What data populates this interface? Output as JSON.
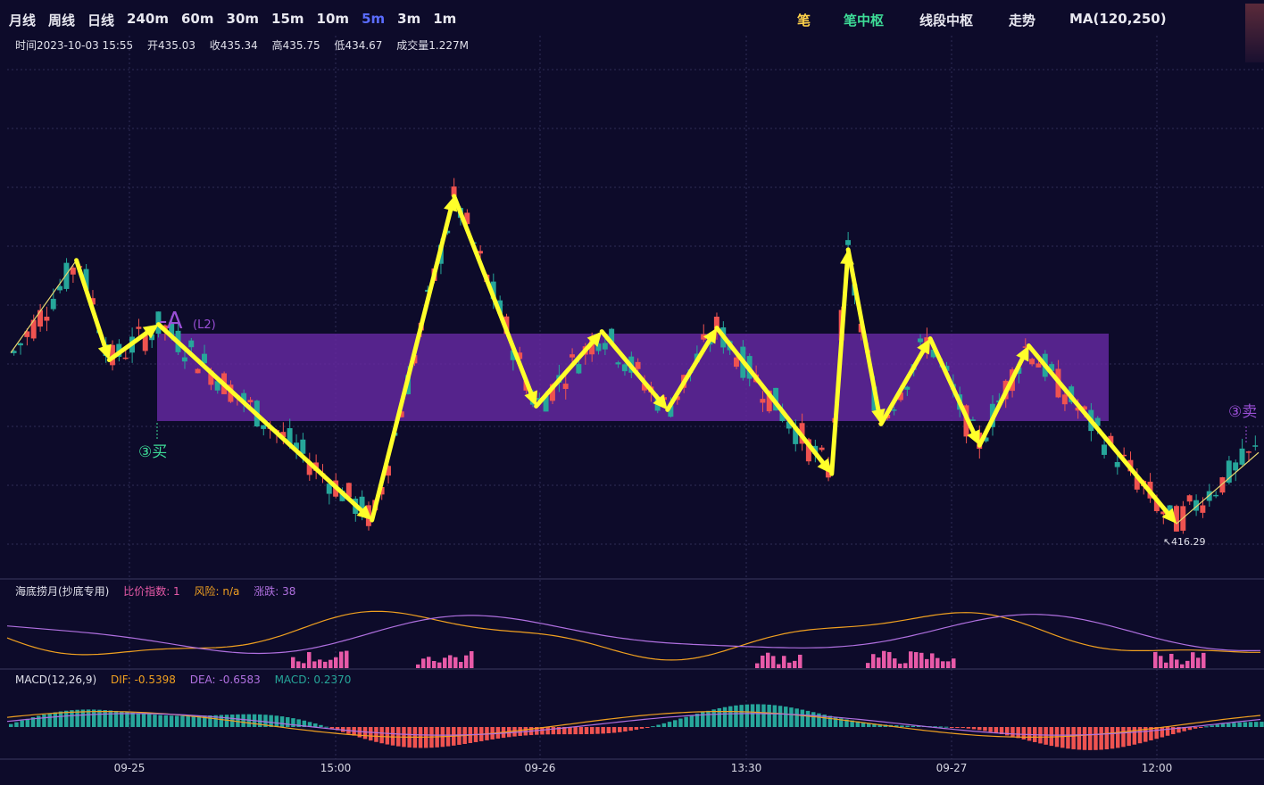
{
  "toolbar": {
    "periods": [
      "月线",
      "周线",
      "日线",
      "240m",
      "60m",
      "30m",
      "15m",
      "10m",
      "5m",
      "3m",
      "1m"
    ],
    "active_period": "5m",
    "modes": [
      {
        "label": "笔",
        "color": "#ffd24a"
      },
      {
        "label": "笔中枢",
        "color": "#3ddc97"
      },
      {
        "label": "线段中枢",
        "color": "#e8e8f0"
      },
      {
        "label": "走势",
        "color": "#e8e8f0"
      },
      {
        "label": "MA(120,250)",
        "color": "#e8e8f0"
      }
    ]
  },
  "ohlc_info": {
    "time": "时间2023-10-03 15:55",
    "open": "开435.03",
    "close": "收435.34",
    "high": "高435.75",
    "low": "低434.67",
    "volume": "成交量1.227M"
  },
  "main_chart": {
    "pivot_label": "-A",
    "pivot_sublabel": "(L2)",
    "buy_signal": "③买",
    "sell_signal": "③卖",
    "low_marker": "416.29"
  },
  "indicator1": {
    "name": "海底捞月(抄底专用)",
    "ratio": "比价指数: 1",
    "risk": "风险: n/a",
    "change": "涨跌: 38"
  },
  "indicator2": {
    "name": "MACD(12,26,9)",
    "dif": "DIF: -0.5398",
    "dea": "DEA: -0.6583",
    "macd": "MACD: 0.2370"
  },
  "x_axis": [
    "09-25",
    "15:00",
    "09-26",
    "13:30",
    "09-27",
    "12:00"
  ],
  "colors": {
    "up": "#26a69a",
    "down": "#ef5350",
    "pivot": "#7b2fbf",
    "stroke": "#ffff2a",
    "pink": "#e85aa8"
  },
  "chart_data": {
    "type": "candlestick",
    "price_label_min": 416.29,
    "stroke_points": [
      {
        "i": 0,
        "p": 0.52
      },
      {
        "i": 4,
        "p": 0.78
      },
      {
        "i": 6,
        "p": 0.5
      },
      {
        "i": 9,
        "p": 0.6
      },
      {
        "i": 22,
        "p": 0.05
      },
      {
        "i": 27,
        "p": 0.96
      },
      {
        "i": 32,
        "p": 0.37
      },
      {
        "i": 36,
        "p": 0.58
      },
      {
        "i": 40,
        "p": 0.36
      },
      {
        "i": 43,
        "p": 0.59
      },
      {
        "i": 50,
        "p": 0.18
      },
      {
        "i": 51,
        "p": 0.81
      },
      {
        "i": 53,
        "p": 0.32
      },
      {
        "i": 56,
        "p": 0.56
      },
      {
        "i": 59,
        "p": 0.26
      },
      {
        "i": 62,
        "p": 0.54
      },
      {
        "i": 71,
        "p": 0.04
      },
      {
        "i": 76,
        "p": 0.24
      }
    ]
  }
}
